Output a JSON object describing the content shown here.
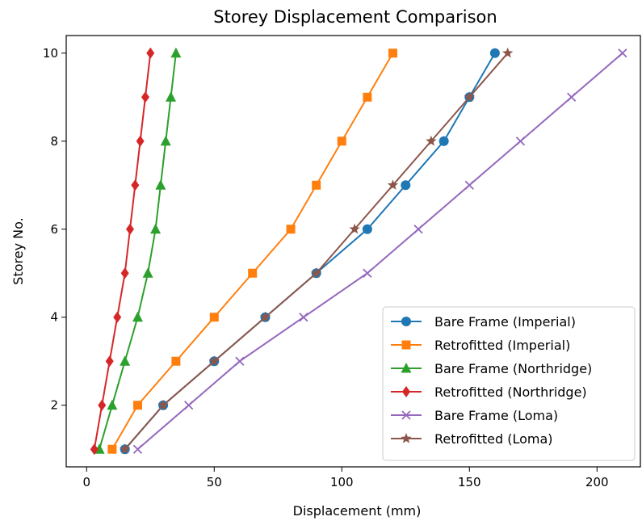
{
  "chart_data": {
    "type": "line",
    "title": "Storey Displacement Comparison",
    "xlabel": "Displacement (mm)",
    "ylabel": "Storey No.",
    "xlim": [
      -8,
      217
    ],
    "ylim": [
      0.6,
      10.4
    ],
    "xticks": [
      0,
      50,
      100,
      150,
      200
    ],
    "yticks": [
      2,
      4,
      6,
      8,
      10
    ],
    "grid": false,
    "legend_position": "lower-right",
    "y": [
      1,
      2,
      3,
      4,
      5,
      6,
      7,
      8,
      9,
      10
    ],
    "series": [
      {
        "name": "Bare Frame (Imperial)",
        "color": "#1f77b4",
        "marker": "circle",
        "x": [
          15,
          30,
          50,
          70,
          90,
          110,
          125,
          140,
          150,
          160
        ]
      },
      {
        "name": "Retrofitted (Imperial)",
        "color": "#ff7f0e",
        "marker": "square",
        "x": [
          10,
          20,
          35,
          50,
          65,
          80,
          90,
          100,
          110,
          120
        ]
      },
      {
        "name": "Bare Frame (Northridge)",
        "color": "#2ca02c",
        "marker": "triangle",
        "x": [
          5,
          10,
          15,
          20,
          24,
          27,
          29,
          31,
          33,
          35
        ]
      },
      {
        "name": "Retrofitted (Northridge)",
        "color": "#d62728",
        "marker": "diamond",
        "x": [
          3,
          6,
          9,
          12,
          15,
          17,
          19,
          21,
          23,
          25
        ]
      },
      {
        "name": "Bare Frame (Loma)",
        "color": "#9467bd",
        "marker": "x",
        "x": [
          20,
          40,
          60,
          85,
          110,
          130,
          150,
          170,
          190,
          210
        ]
      },
      {
        "name": "Retrofitted (Loma)",
        "color": "#8c564b",
        "marker": "star",
        "x": [
          15,
          30,
          50,
          70,
          90,
          105,
          120,
          135,
          150,
          165
        ]
      }
    ]
  }
}
